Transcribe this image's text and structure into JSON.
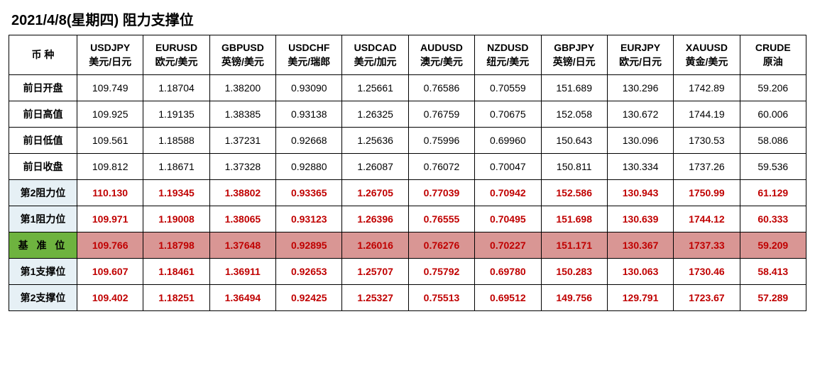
{
  "title": "2021/4/8(星期四) 阻力支撑位",
  "corner": "币 种",
  "columns": [
    {
      "sym": "USDJPY",
      "sub": "美元/日元"
    },
    {
      "sym": "EURUSD",
      "sub": "欧元/美元"
    },
    {
      "sym": "GBPUSD",
      "sub": "英镑/美元"
    },
    {
      "sym": "USDCHF",
      "sub": "美元/瑞郎"
    },
    {
      "sym": "USDCAD",
      "sub": "美元/加元"
    },
    {
      "sym": "AUDUSD",
      "sub": "澳元/美元"
    },
    {
      "sym": "NZDUSD",
      "sub": "纽元/美元"
    },
    {
      "sym": "GBPJPY",
      "sub": "英镑/日元"
    },
    {
      "sym": "EURJPY",
      "sub": "欧元/日元"
    },
    {
      "sym": "XAUUSD",
      "sub": "黄金/美元"
    },
    {
      "sym": "CRUDE",
      "sub": "原油"
    }
  ],
  "rows": [
    {
      "label": "前日开盘",
      "style": "plain",
      "cells": [
        "109.749",
        "1.18704",
        "1.38200",
        "0.93090",
        "1.25661",
        "0.76586",
        "0.70559",
        "151.689",
        "130.296",
        "1742.89",
        "59.206"
      ]
    },
    {
      "label": "前日高值",
      "style": "plain",
      "cells": [
        "109.925",
        "1.19135",
        "1.38385",
        "0.93138",
        "1.26325",
        "0.76759",
        "0.70675",
        "152.058",
        "130.672",
        "1744.19",
        "60.006"
      ]
    },
    {
      "label": "前日低值",
      "style": "plain",
      "cells": [
        "109.561",
        "1.18588",
        "1.37231",
        "0.92668",
        "1.25636",
        "0.75996",
        "0.69960",
        "150.643",
        "130.096",
        "1730.53",
        "58.086"
      ]
    },
    {
      "label": "前日收盘",
      "style": "plain",
      "cells": [
        "109.812",
        "1.18671",
        "1.37328",
        "0.92880",
        "1.26087",
        "0.76072",
        "0.70047",
        "150.811",
        "130.334",
        "1737.26",
        "59.536"
      ]
    },
    {
      "label": "第2阻力位",
      "style": "r2",
      "cells": [
        "110.130",
        "1.19345",
        "1.38802",
        "0.93365",
        "1.26705",
        "0.77039",
        "0.70942",
        "152.586",
        "130.943",
        "1750.99",
        "61.129"
      ]
    },
    {
      "label": "第1阻力位",
      "style": "r1",
      "cells": [
        "109.971",
        "1.19008",
        "1.38065",
        "0.93123",
        "1.26396",
        "0.76555",
        "0.70495",
        "151.698",
        "130.639",
        "1744.12",
        "60.333"
      ]
    },
    {
      "label": "基 准 位",
      "style": "pivot",
      "cells": [
        "109.766",
        "1.18798",
        "1.37648",
        "0.92895",
        "1.26016",
        "0.76276",
        "0.70227",
        "151.171",
        "130.367",
        "1737.33",
        "59.209"
      ]
    },
    {
      "label": "第1支撑位",
      "style": "s1",
      "cells": [
        "109.607",
        "1.18461",
        "1.36911",
        "0.92653",
        "1.25707",
        "0.75792",
        "0.69780",
        "150.283",
        "130.063",
        "1730.46",
        "58.413"
      ]
    },
    {
      "label": "第2支撑位",
      "style": "s2",
      "cells": [
        "109.402",
        "1.18251",
        "1.36494",
        "0.92425",
        "1.25327",
        "0.75513",
        "0.69512",
        "149.756",
        "129.791",
        "1723.67",
        "57.289"
      ]
    }
  ],
  "colors": {
    "border": "#000000",
    "red_text": "#c00000",
    "pivot_header_bg": "#6eb33f",
    "pivot_cell_bg": "#d99694",
    "light_blue_bg": "#e6f0f5",
    "background": "#ffffff"
  }
}
